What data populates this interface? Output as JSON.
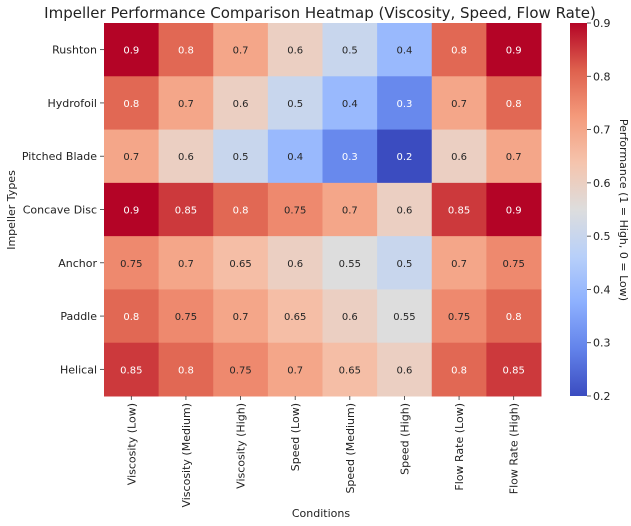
{
  "chart_data": {
    "type": "heatmap",
    "title": "Impeller Performance Comparison Heatmap (Viscosity, Speed, Flow Rate)",
    "xlabel": "Conditions",
    "ylabel": "Impeller Types",
    "x_categories": [
      "Viscosity (Low)",
      "Viscosity (Medium)",
      "Viscosity (High)",
      "Speed (Low)",
      "Speed (Medium)",
      "Speed (High)",
      "Flow Rate (Low)",
      "Flow Rate (High)"
    ],
    "y_categories": [
      "Rushton",
      "Hydrofoil",
      "Pitched Blade",
      "Concave Disc",
      "Anchor",
      "Paddle",
      "Helical"
    ],
    "values": [
      [
        0.9,
        0.8,
        0.7,
        0.6,
        0.5,
        0.4,
        0.8,
        0.9
      ],
      [
        0.8,
        0.7,
        0.6,
        0.5,
        0.4,
        0.3,
        0.7,
        0.8
      ],
      [
        0.7,
        0.6,
        0.5,
        0.4,
        0.3,
        0.2,
        0.6,
        0.7
      ],
      [
        0.9,
        0.85,
        0.8,
        0.75,
        0.7,
        0.6,
        0.85,
        0.9
      ],
      [
        0.75,
        0.7,
        0.65,
        0.6,
        0.55,
        0.5,
        0.7,
        0.75
      ],
      [
        0.8,
        0.75,
        0.7,
        0.65,
        0.6,
        0.55,
        0.75,
        0.8
      ],
      [
        0.85,
        0.8,
        0.75,
        0.7,
        0.65,
        0.6,
        0.8,
        0.85
      ]
    ],
    "colorbar": {
      "label": "Performance (1 = High, 0 = Low)",
      "range": [
        0.2,
        0.9
      ],
      "ticks": [
        "0.2",
        "0.3",
        "0.4",
        "0.5",
        "0.6",
        "0.7",
        "0.8",
        "0.9"
      ],
      "colormap": "coolwarm"
    }
  }
}
